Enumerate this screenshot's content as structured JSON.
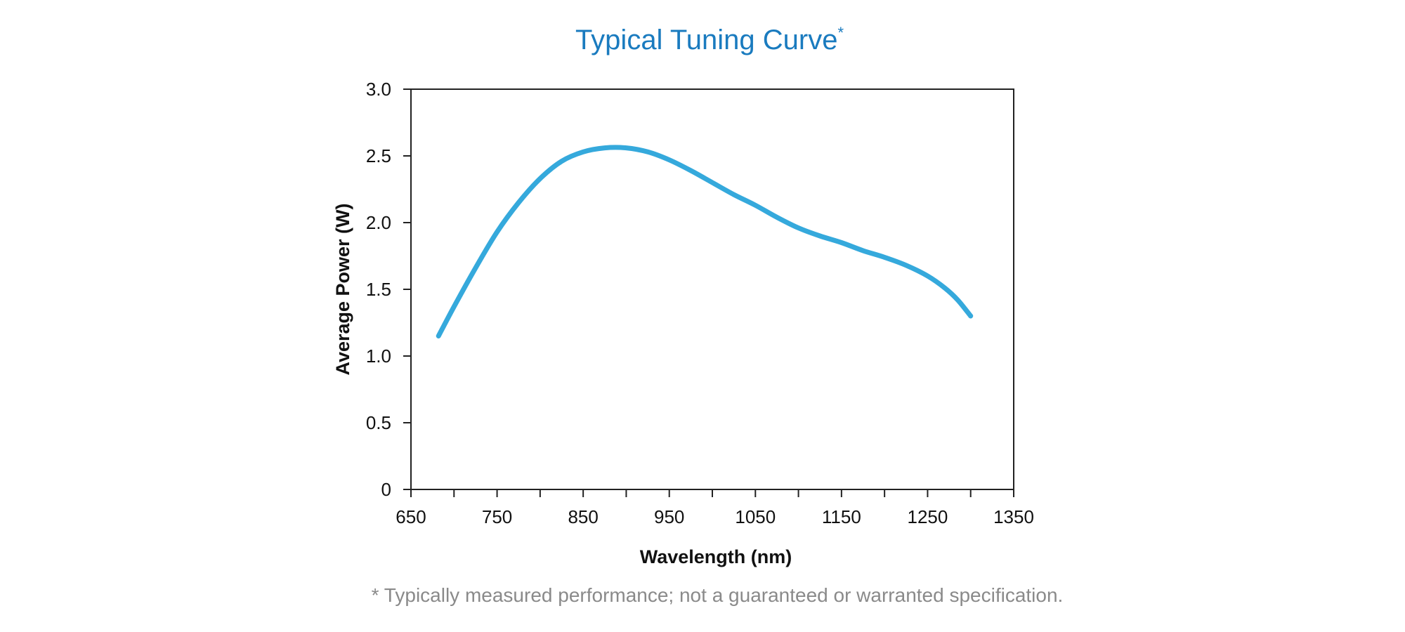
{
  "chart_data": {
    "type": "line",
    "title": "Typical Tuning Curve",
    "title_marker": "*",
    "xlabel": "Wavelength (nm)",
    "ylabel": "Average Power (W)",
    "xlim": [
      650,
      1350
    ],
    "ylim": [
      0,
      3.0
    ],
    "x_ticks": [
      650,
      700,
      750,
      800,
      850,
      900,
      950,
      1000,
      1050,
      1100,
      1150,
      1200,
      1250,
      1300,
      1350
    ],
    "x_tick_labels": [
      "650",
      "750",
      "850",
      "950",
      "1050",
      "1150",
      "1250",
      "1350"
    ],
    "y_ticks": [
      0,
      0.5,
      1.0,
      1.5,
      2.0,
      2.5,
      3.0
    ],
    "y_tick_labels": [
      "0",
      "0.5",
      "1.0",
      "1.5",
      "2.0",
      "2.5",
      "3.0"
    ],
    "grid": false,
    "series": [
      {
        "name": "Average Power",
        "color": "#35a9dc",
        "x": [
          682,
          700,
          725,
          750,
          775,
          800,
          825,
          850,
          875,
          900,
          925,
          950,
          975,
          1000,
          1025,
          1050,
          1075,
          1100,
          1125,
          1150,
          1175,
          1200,
          1225,
          1250,
          1270,
          1285,
          1300
        ],
        "y": [
          1.15,
          1.37,
          1.66,
          1.93,
          2.15,
          2.33,
          2.46,
          2.53,
          2.56,
          2.56,
          2.53,
          2.47,
          2.39,
          2.3,
          2.21,
          2.13,
          2.04,
          1.96,
          1.9,
          1.85,
          1.79,
          1.74,
          1.68,
          1.6,
          1.51,
          1.42,
          1.3
        ]
      }
    ],
    "footnote": "* Typically measured performance; not a guaranteed or warranted specification."
  }
}
